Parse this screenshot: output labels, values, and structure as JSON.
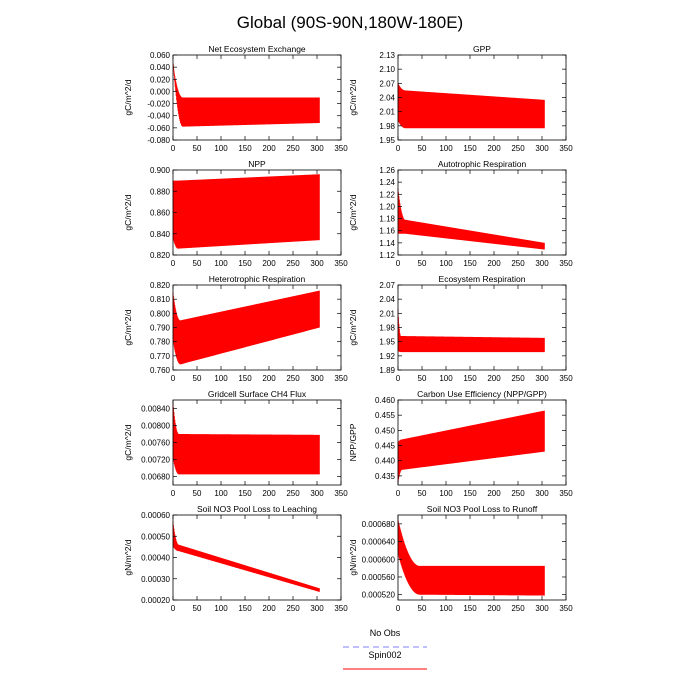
{
  "figure_title": "Global (90S-90N,180W-180E)",
  "legend": [
    {
      "label": "No Obs",
      "color": "#8080ff",
      "style": "dashed"
    },
    {
      "label": "Spin002",
      "color": "#ff0000",
      "style": "solid"
    }
  ],
  "line_color": "#ff0000",
  "chart_data": [
    {
      "type": "line",
      "title": "Net Ecosystem Exchange",
      "xlabel": "",
      "ylabel": "gC/m^2/d",
      "xlim": [
        0,
        350
      ],
      "xticks": [
        "0",
        "50",
        "100",
        "150",
        "200",
        "250",
        "300",
        "350"
      ],
      "ylim": [
        -0.08,
        0.06
      ],
      "yticks": [
        "-0.080",
        "-0.060",
        "-0.040",
        "-0.020",
        "0.000",
        "0.020",
        "0.040",
        "0.060"
      ],
      "series": [
        {
          "name": "Spin002",
          "x_range": [
            0,
            305
          ],
          "n_years": 305,
          "start_lower": 0.045,
          "start_upper": 0.045,
          "settle_lower": -0.058,
          "settle_upper": -0.01,
          "final_lower": -0.052,
          "final_upper": -0.01,
          "settle_years": 20
        }
      ]
    },
    {
      "type": "line",
      "title": "GPP",
      "xlabel": "",
      "ylabel": "gC/m^2/d",
      "xlim": [
        0,
        350
      ],
      "xticks": [
        "0",
        "50",
        "100",
        "150",
        "200",
        "250",
        "300",
        "350"
      ],
      "ylim": [
        1.95,
        2.13
      ],
      "yticks": [
        "1.95",
        "1.98",
        "2.01",
        "2.04",
        "2.07",
        "2.10",
        "2.13"
      ],
      "series": [
        {
          "name": "Spin002",
          "x_range": [
            0,
            305
          ],
          "n_years": 305,
          "start_lower": 1.99,
          "start_upper": 2.07,
          "settle_lower": 1.975,
          "settle_upper": 2.055,
          "final_lower": 1.975,
          "final_upper": 2.035,
          "settle_years": 15
        }
      ]
    },
    {
      "type": "line",
      "title": "NPP",
      "xlabel": "",
      "ylabel": "gC/m^2/d",
      "xlim": [
        0,
        350
      ],
      "xticks": [
        "0",
        "50",
        "100",
        "150",
        "200",
        "250",
        "300",
        "350"
      ],
      "ylim": [
        0.82,
        0.9
      ],
      "yticks": [
        "0.820",
        "0.840",
        "0.860",
        "0.880",
        "0.900"
      ],
      "series": [
        {
          "name": "Spin002",
          "x_range": [
            0,
            305
          ],
          "n_years": 305,
          "start_lower": 0.835,
          "start_upper": 0.89,
          "settle_lower": 0.826,
          "settle_upper": 0.89,
          "final_lower": 0.834,
          "final_upper": 0.896,
          "settle_years": 10
        }
      ]
    },
    {
      "type": "line",
      "title": "Autotrophic Respiration",
      "xlabel": "",
      "ylabel": "gC/m^2/d",
      "xlim": [
        0,
        350
      ],
      "xticks": [
        "0",
        "50",
        "100",
        "150",
        "200",
        "250",
        "300",
        "350"
      ],
      "ylim": [
        1.12,
        1.26
      ],
      "yticks": [
        "1.12",
        "1.14",
        "1.16",
        "1.18",
        "1.20",
        "1.22",
        "1.24",
        "1.26"
      ],
      "series": [
        {
          "name": "Spin002",
          "x_range": [
            0,
            305
          ],
          "n_years": 305,
          "start_lower": 1.155,
          "start_upper": 1.23,
          "settle_lower": 1.155,
          "settle_upper": 1.178,
          "final_lower": 1.129,
          "final_upper": 1.14,
          "settle_years": 15
        }
      ]
    },
    {
      "type": "line",
      "title": "Heterotrophic Respiration",
      "xlabel": "",
      "ylabel": "gC/m^2/d",
      "xlim": [
        0,
        350
      ],
      "xticks": [
        "0",
        "50",
        "100",
        "150",
        "200",
        "250",
        "300",
        "350"
      ],
      "ylim": [
        0.76,
        0.82
      ],
      "yticks": [
        "0.760",
        "0.770",
        "0.780",
        "0.790",
        "0.800",
        "0.810",
        "0.820"
      ],
      "series": [
        {
          "name": "Spin002",
          "x_range": [
            0,
            305
          ],
          "n_years": 305,
          "start_lower": 0.78,
          "start_upper": 0.815,
          "settle_lower": 0.764,
          "settle_upper": 0.795,
          "final_lower": 0.79,
          "final_upper": 0.816,
          "settle_years": 15
        }
      ]
    },
    {
      "type": "line",
      "title": "Ecosystem Respiration",
      "xlabel": "",
      "ylabel": "gC/m^2/d",
      "xlim": [
        0,
        350
      ],
      "xticks": [
        "0",
        "50",
        "100",
        "150",
        "200",
        "250",
        "300",
        "350"
      ],
      "ylim": [
        1.89,
        2.07
      ],
      "yticks": [
        "1.89",
        "1.92",
        "1.95",
        "1.98",
        "2.01",
        "2.04",
        "2.07"
      ],
      "series": [
        {
          "name": "Spin002",
          "x_range": [
            0,
            305
          ],
          "n_years": 305,
          "start_lower": 1.93,
          "start_upper": 2.02,
          "settle_lower": 1.928,
          "settle_upper": 1.962,
          "final_lower": 1.928,
          "final_upper": 1.958,
          "settle_years": 6
        }
      ]
    },
    {
      "type": "line",
      "title": "Gridcell Surface CH4 Flux",
      "xlabel": "",
      "ylabel": "gC/m^2/d",
      "xlim": [
        0,
        350
      ],
      "xticks": [
        "0",
        "50",
        "100",
        "150",
        "200",
        "250",
        "300",
        "350"
      ],
      "ylim": [
        0.0066,
        0.0086
      ],
      "yticks": [
        "0.00680",
        "0.00720",
        "0.00760",
        "0.00800",
        "0.00840"
      ],
      "series": [
        {
          "name": "Spin002",
          "x_range": [
            0,
            305
          ],
          "n_years": 305,
          "start_lower": 0.0072,
          "start_upper": 0.00855,
          "settle_lower": 0.00685,
          "settle_upper": 0.0078,
          "final_lower": 0.00685,
          "final_upper": 0.00778,
          "settle_years": 12
        }
      ]
    },
    {
      "type": "line",
      "title": "Carbon Use Efficiency (NPP/GPP)",
      "xlabel": "",
      "ylabel": "NPP/GPP",
      "xlim": [
        0,
        350
      ],
      "xticks": [
        "0",
        "50",
        "100",
        "150",
        "200",
        "250",
        "300",
        "350"
      ],
      "ylim": [
        0.432,
        0.46
      ],
      "yticks": [
        "0.435",
        "0.440",
        "0.445",
        "0.450",
        "0.455",
        "0.460"
      ],
      "series": [
        {
          "name": "Spin002",
          "x_range": [
            0,
            305
          ],
          "n_years": 305,
          "start_lower": 0.433,
          "start_upper": 0.446,
          "settle_lower": 0.437,
          "settle_upper": 0.447,
          "final_lower": 0.443,
          "final_upper": 0.4565,
          "settle_years": 8
        }
      ]
    },
    {
      "type": "line",
      "title": "Soil NO3 Pool Loss to Leaching",
      "xlabel": "",
      "ylabel": "gN/m^2/d",
      "xlim": [
        0,
        350
      ],
      "xticks": [
        "0",
        "50",
        "100",
        "150",
        "200",
        "250",
        "300",
        "350"
      ],
      "ylim": [
        0.0002,
        0.0006
      ],
      "yticks": [
        "0.00020",
        "0.00030",
        "0.00040",
        "0.00050",
        "0.00060"
      ],
      "series": [
        {
          "name": "Spin002",
          "x_range": [
            0,
            305
          ],
          "n_years": 305,
          "start_lower": 0.00045,
          "start_upper": 0.00057,
          "settle_lower": 0.00043,
          "settle_upper": 0.00046,
          "final_lower": 0.000238,
          "final_upper": 0.000255,
          "settle_years": 12
        }
      ]
    },
    {
      "type": "line",
      "title": "Soil NO3 Pool Loss to Runoff",
      "xlabel": "",
      "ylabel": "gN/m^2/d",
      "xlim": [
        0,
        350
      ],
      "xticks": [
        "0",
        "50",
        "100",
        "150",
        "200",
        "250",
        "300",
        "350"
      ],
      "ylim": [
        0.000508,
        0.0007
      ],
      "yticks": [
        "0.000520",
        "0.000560",
        "0.000600",
        "0.000640",
        "0.000680"
      ],
      "series": [
        {
          "name": "Spin002",
          "x_range": [
            0,
            305
          ],
          "n_years": 305,
          "start_lower": 0.00061,
          "start_upper": 0.00069,
          "settle_lower": 0.00052,
          "settle_upper": 0.000585,
          "final_lower": 0.000518,
          "final_upper": 0.000585,
          "settle_years": 45
        }
      ]
    }
  ]
}
